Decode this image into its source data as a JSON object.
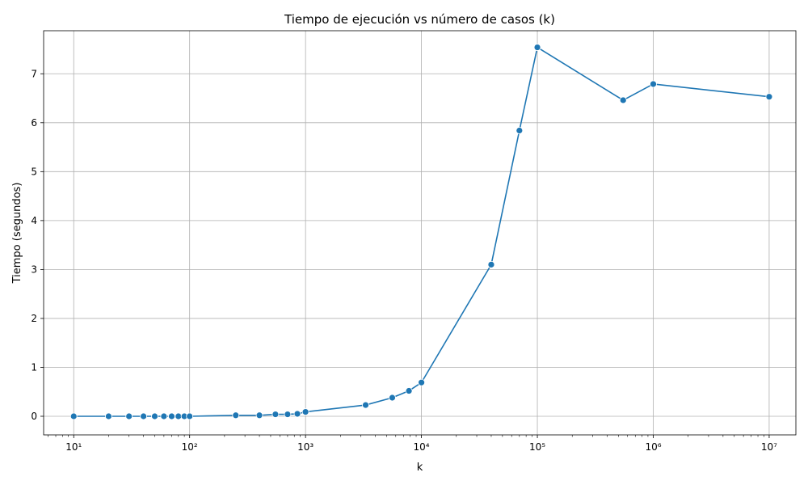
{
  "chart_data": {
    "type": "line",
    "title": "Tiempo de ejecución vs número de casos (k)",
    "xlabel": "k",
    "ylabel": "Tiempo (segundos)",
    "xscale": "log",
    "xlim": [
      5.5,
      17000000
    ],
    "ylim": [
      -0.38,
      7.88
    ],
    "grid": true,
    "color": "#1f77b4",
    "x_ticks": [
      {
        "value": 10,
        "label": "10¹"
      },
      {
        "value": 100,
        "label": "10²"
      },
      {
        "value": 1000,
        "label": "10³"
      },
      {
        "value": 10000,
        "label": "10⁴"
      },
      {
        "value": 100000,
        "label": "10⁵"
      },
      {
        "value": 1000000,
        "label": "10⁶"
      },
      {
        "value": 10000000,
        "label": "10⁷"
      }
    ],
    "y_ticks": [
      0,
      1,
      2,
      3,
      4,
      5,
      6,
      7
    ],
    "series": [
      {
        "points": [
          [
            10,
            0.0
          ],
          [
            20,
            0.0
          ],
          [
            30,
            0.0
          ],
          [
            40,
            0.0
          ],
          [
            50,
            0.0
          ],
          [
            60,
            0.0
          ],
          [
            70,
            0.0
          ],
          [
            80,
            0.0
          ],
          [
            90,
            0.0
          ],
          [
            100,
            0.0
          ],
          [
            250,
            0.02
          ],
          [
            400,
            0.02
          ],
          [
            550,
            0.04
          ],
          [
            700,
            0.04
          ],
          [
            850,
            0.05
          ],
          [
            1000,
            0.09
          ],
          [
            3300,
            0.23
          ],
          [
            5600,
            0.38
          ],
          [
            7800,
            0.52
          ],
          [
            10000,
            0.69
          ],
          [
            40000,
            3.1
          ],
          [
            70000,
            5.84
          ],
          [
            100000,
            7.54
          ],
          [
            550000,
            6.46
          ],
          [
            1000000,
            6.79
          ],
          [
            10000000,
            6.53
          ]
        ]
      }
    ]
  }
}
